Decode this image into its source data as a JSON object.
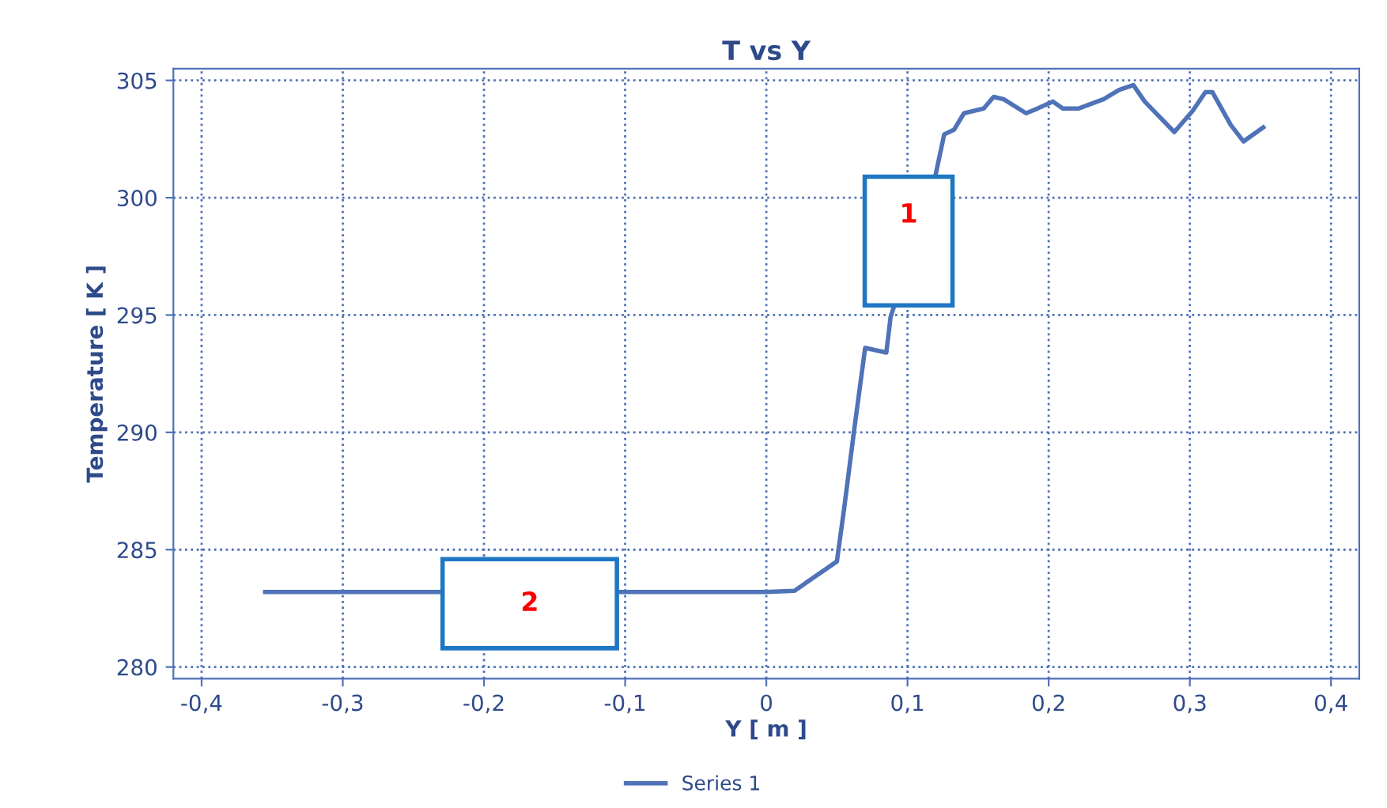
{
  "chart_data": {
    "type": "line",
    "title": "T vs Y",
    "xlabel": "Y [ m ]",
    "ylabel": "Temperature [ K ]",
    "series": [
      {
        "name": "Series 1",
        "color": "#4f72b8",
        "x": [
          -0.355,
          0.0,
          0.02,
          0.05,
          0.055,
          0.062,
          0.07,
          0.085,
          0.088,
          0.12,
          0.126,
          0.133,
          0.14,
          0.154,
          0.161,
          0.168,
          0.184,
          0.192,
          0.203,
          0.21,
          0.221,
          0.239,
          0.25,
          0.26,
          0.268,
          0.289,
          0.302,
          0.311,
          0.316,
          0.329,
          0.338,
          0.352
        ],
        "values": [
          283.2,
          283.2,
          283.25,
          284.5,
          286.7,
          290.0,
          293.6,
          293.4,
          294.9,
          301.0,
          302.7,
          302.9,
          303.6,
          303.8,
          304.3,
          304.2,
          303.6,
          303.8,
          304.1,
          303.8,
          303.8,
          304.2,
          304.6,
          304.8,
          304.1,
          302.8,
          303.7,
          304.5,
          304.5,
          303.1,
          302.4,
          303.0
        ]
      }
    ],
    "xlim": [
      -0.42,
      0.42
    ],
    "ylim": [
      279.5,
      305.5
    ],
    "xticks": [
      {
        "value": -0.4,
        "label": "-0,4"
      },
      {
        "value": -0.3,
        "label": "-0,3"
      },
      {
        "value": -0.2,
        "label": "-0,2"
      },
      {
        "value": -0.1,
        "label": "-0,1"
      },
      0,
      {
        "value": 0.1,
        "label": "0,1"
      },
      {
        "value": 0.2,
        "label": "0,2"
      },
      {
        "value": 0.3,
        "label": "0,3"
      },
      {
        "value": 0.4,
        "label": "0,4"
      }
    ],
    "yticks": [
      280,
      285,
      290,
      295,
      300,
      305
    ],
    "annotations": [
      "1",
      "2"
    ],
    "grid": true,
    "legend": "bottom",
    "marker": "none",
    "line_style": "solid"
  }
}
